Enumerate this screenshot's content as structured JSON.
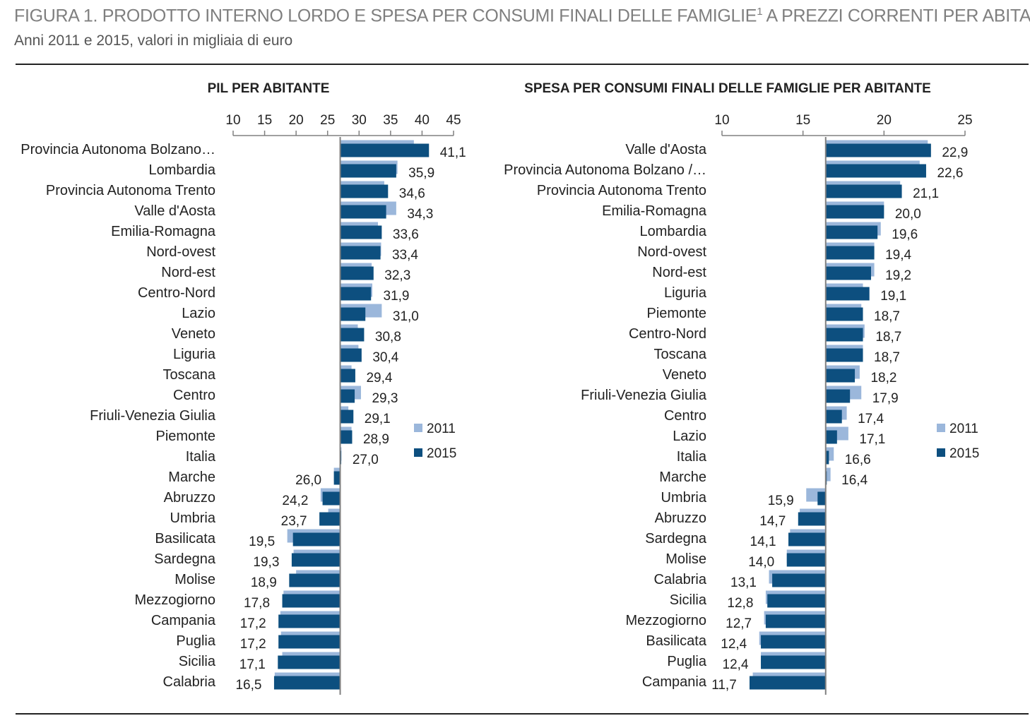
{
  "header": {
    "title": "FIGURA 1. PRODOTTO INTERNO LORDO E SPESA PER CONSUMI FINALI DELLE FAMIGLIE",
    "title_sup": "1",
    "title_tail": " A PREZZI CORRENTI PER ABITANTE",
    "subtitle": "Anni 2011 e 2015, valori in migliaia di euro"
  },
  "colors": {
    "y2011": "#9bb7db",
    "y2015": "#0d4f7f",
    "axis": "#808080",
    "text": "#222222"
  },
  "chart_data": [
    {
      "type": "bar",
      "orientation": "horizontal",
      "title": "PIL PER ABITANTE",
      "baseline": 27.0,
      "xlim": [
        10,
        45
      ],
      "ticks": [
        10,
        15,
        20,
        25,
        30,
        35,
        40,
        45
      ],
      "legend": [
        "2011",
        "2015"
      ],
      "legend_position": "right",
      "categories": [
        "Provincia Autonoma Bolzano…",
        "Lombardia",
        "Provincia Autonoma Trento",
        "Valle d'Aosta",
        "Emilia-Romagna",
        "Nord-ovest",
        "Nord-est",
        "Centro-Nord",
        "Lazio",
        "Veneto",
        "Liguria",
        "Toscana",
        "Centro",
        "Friuli-Venezia Giulia",
        "Piemonte",
        "Italia",
        "Marche",
        "Abruzzo",
        "Umbria",
        "Basilicata",
        "Sardegna",
        "Molise",
        "Mezzogiorno",
        "Campania",
        "Puglia",
        "Sicilia",
        "Calabria"
      ],
      "series": [
        {
          "name": "2011",
          "values": [
            38.7,
            36.1,
            34.0,
            35.9,
            33.0,
            33.5,
            32.0,
            32.1,
            33.6,
            29.8,
            29.9,
            28.8,
            30.3,
            28.3,
            28.8,
            27.2,
            26.0,
            23.9,
            25.1,
            18.6,
            19.6,
            20.0,
            18.0,
            17.5,
            17.6,
            17.8,
            16.6
          ]
        },
        {
          "name": "2015",
          "values": [
            41.1,
            35.9,
            34.6,
            34.3,
            33.6,
            33.4,
            32.3,
            31.9,
            31.0,
            30.8,
            30.4,
            29.4,
            29.3,
            29.1,
            28.9,
            27.0,
            26.0,
            24.2,
            23.7,
            19.5,
            19.3,
            18.9,
            17.8,
            17.2,
            17.2,
            17.1,
            16.5
          ]
        }
      ],
      "labels": [
        "41,1",
        "35,9",
        "34,6",
        "34,3",
        "33,6",
        "33,4",
        "32,3",
        "31,9",
        "31,0",
        "30,8",
        "30,4",
        "29,4",
        "29,3",
        "29,1",
        "28,9",
        "27,0",
        "26,0",
        "24,2",
        "23,7",
        "19,5",
        "19,3",
        "18,9",
        "17,8",
        "17,2",
        "17,2",
        "17,1",
        "16,5"
      ]
    },
    {
      "type": "bar",
      "orientation": "horizontal",
      "title": "SPESA PER CONSUMI FINALI DELLE FAMIGLIE PER ABITANTE",
      "baseline": 16.4,
      "xlim": [
        10,
        25
      ],
      "ticks": [
        10,
        15,
        20,
        25
      ],
      "legend": [
        "2011",
        "2015"
      ],
      "legend_position": "right",
      "categories": [
        "Valle d'Aosta",
        "Provincia Autonoma Bolzano /…",
        "Provincia Autonoma Trento",
        "Emilia-Romagna",
        "Lombardia",
        "Nord-ovest",
        "Nord-est",
        "Liguria",
        "Piemonte",
        "Centro-Nord",
        "Toscana",
        "Veneto",
        "Friuli-Venezia Giulia",
        "Centro",
        "Lazio",
        "Italia",
        "Marche",
        "Umbria",
        "Abruzzo",
        "Sardegna",
        "Molise",
        "Calabria",
        "Sicilia",
        "Mezzogiorno",
        "Basilicata",
        "Puglia",
        "Campania"
      ],
      "series": [
        {
          "name": "2011",
          "values": [
            22.7,
            22.2,
            21.0,
            20.0,
            19.8,
            19.4,
            19.4,
            18.7,
            18.6,
            18.8,
            18.7,
            18.5,
            18.6,
            17.7,
            17.8,
            16.9,
            16.7,
            15.2,
            14.8,
            14.2,
            14.0,
            12.9,
            12.7,
            12.6,
            12.3,
            12.4,
            11.9
          ]
        },
        {
          "name": "2015",
          "values": [
            22.9,
            22.6,
            21.1,
            20.0,
            19.6,
            19.4,
            19.2,
            19.1,
            18.7,
            18.7,
            18.7,
            18.2,
            17.9,
            17.4,
            17.1,
            16.6,
            16.4,
            15.9,
            14.7,
            14.1,
            14.0,
            13.1,
            12.8,
            12.7,
            12.4,
            12.4,
            11.7
          ]
        }
      ],
      "labels": [
        "22,9",
        "22,6",
        "21,1",
        "20,0",
        "19,6",
        "19,4",
        "19,2",
        "19,1",
        "18,7",
        "18,7",
        "18,7",
        "18,2",
        "17,9",
        "17,4",
        "17,1",
        "16,6",
        "16,4",
        "15,9",
        "14,7",
        "14,1",
        "14,0",
        "13,1",
        "12,8",
        "12,7",
        "12,4",
        "12,4",
        "11,7"
      ]
    }
  ]
}
